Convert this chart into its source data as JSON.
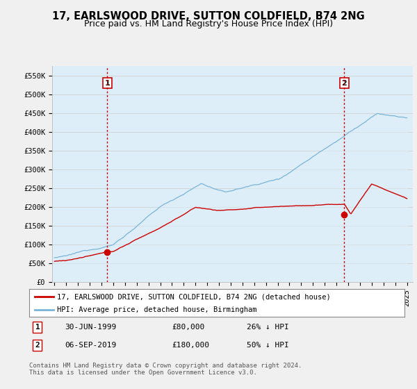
{
  "title": "17, EARLSWOOD DRIVE, SUTTON COLDFIELD, B74 2NG",
  "subtitle": "Price paid vs. HM Land Registry's House Price Index (HPI)",
  "ylabel_ticks": [
    "£0",
    "£50K",
    "£100K",
    "£150K",
    "£200K",
    "£250K",
    "£300K",
    "£350K",
    "£400K",
    "£450K",
    "£500K",
    "£550K"
  ],
  "ytick_values": [
    0,
    50000,
    100000,
    150000,
    200000,
    250000,
    300000,
    350000,
    400000,
    450000,
    500000,
    550000
  ],
  "ylim": [
    0,
    575000
  ],
  "year_start": 1995,
  "year_end": 2025,
  "sale1_year": 1999.5,
  "sale1_price": 80000,
  "sale1_label": "1",
  "sale1_date": "30-JUN-1999",
  "sale1_pct": "26% ↓ HPI",
  "sale2_year": 2019.67,
  "sale2_price": 180000,
  "sale2_label": "2",
  "sale2_date": "06-SEP-2019",
  "sale2_pct": "50% ↓ HPI",
  "hpi_color": "#7ab4d8",
  "hpi_fill": "#ddeef8",
  "sale_color": "#cc0000",
  "vline_color": "#cc0000",
  "legend_label_sale": "17, EARLSWOOD DRIVE, SUTTON COLDFIELD, B74 2NG (detached house)",
  "legend_label_hpi": "HPI: Average price, detached house, Birmingham",
  "footnote": "Contains HM Land Registry data © Crown copyright and database right 2024.\nThis data is licensed under the Open Government Licence v3.0.",
  "bg_color": "#f0f0f0",
  "plot_bg": "#ddeef8",
  "title_fontsize": 10.5,
  "subtitle_fontsize": 9,
  "tick_fontsize": 7.5
}
